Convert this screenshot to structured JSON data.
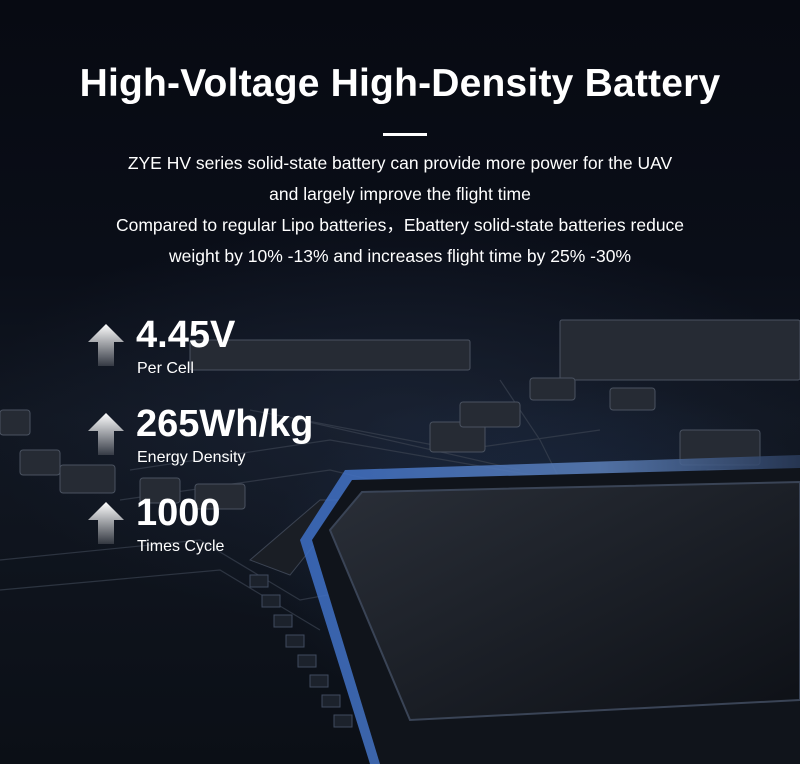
{
  "header": {
    "title": "High-Voltage High-Density Battery",
    "description": [
      "ZYE HV series solid-state battery can provide more power for the UAV",
      "and largely improve the flight time",
      "Compared to regular Lipo batteries，Ebattery solid-state batteries reduce",
      "weight by 10% -13% and increases flight time by 25% -30%"
    ]
  },
  "stats": [
    {
      "value": "4.45V",
      "label": "Per Cell",
      "icon": "arrow-up-icon"
    },
    {
      "value": "265Wh/kg",
      "label": "Energy Density",
      "icon": "arrow-up-icon"
    },
    {
      "value": "1000",
      "label": "Times Cycle",
      "icon": "arrow-up-icon"
    }
  ],
  "colors": {
    "background": "#070a12",
    "text": "#ffffff",
    "accent_glow": "#3a6fd8"
  }
}
